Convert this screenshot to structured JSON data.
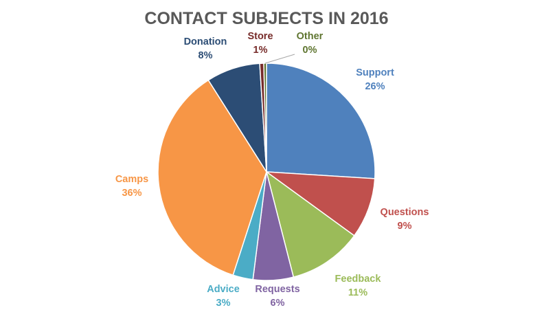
{
  "chart_data": {
    "type": "pie",
    "title": "CONTACT SUBJECTS IN 2016",
    "slices": [
      {
        "label": "Support",
        "value": 26,
        "pct_label": "26%",
        "color": "#4F81BD"
      },
      {
        "label": "Questions",
        "value": 9,
        "pct_label": "9%",
        "color": "#C0504D"
      },
      {
        "label": "Feedback",
        "value": 11,
        "pct_label": "11%",
        "color": "#9BBB59"
      },
      {
        "label": "Requests",
        "value": 6,
        "pct_label": "6%",
        "color": "#8064A2"
      },
      {
        "label": "Advice",
        "value": 3,
        "pct_label": "3%",
        "color": "#4BACC6"
      },
      {
        "label": "Camps",
        "value": 36,
        "pct_label": "36%",
        "color": "#F79646"
      },
      {
        "label": "Donation",
        "value": 8,
        "pct_label": "8%",
        "color": "#2C4D75"
      },
      {
        "label": "Store",
        "value": 0.6,
        "pct_label": "1%",
        "color": "#772C2A"
      },
      {
        "label": "Other",
        "value": 0.4,
        "pct_label": "0%",
        "color": "#5F7530"
      }
    ],
    "legend": "none",
    "label_position": "outside"
  }
}
